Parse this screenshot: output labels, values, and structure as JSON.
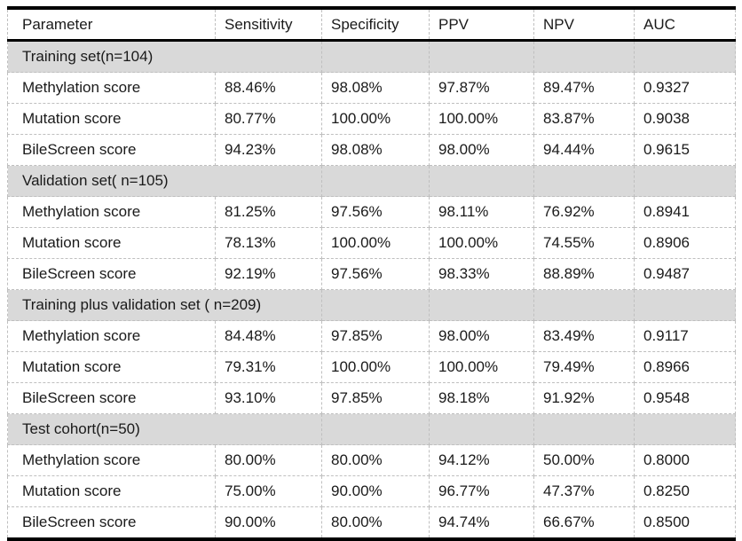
{
  "table": {
    "columns": [
      {
        "key": "parameter",
        "label": "Parameter"
      },
      {
        "key": "sensitivity",
        "label": "Sensitivity"
      },
      {
        "key": "specificity",
        "label": "Specificity"
      },
      {
        "key": "ppv",
        "label": "PPV"
      },
      {
        "key": "npv",
        "label": "NPV"
      },
      {
        "key": "auc",
        "label": "AUC"
      }
    ],
    "sections": [
      {
        "label": "Training set(n=104)",
        "rows": [
          {
            "parameter": "Methylation score",
            "values": [
              "88.46%",
              "98.08%",
              "97.87%",
              "89.47%",
              "0.9327"
            ]
          },
          {
            "parameter": "Mutation score",
            "values": [
              "80.77%",
              "100.00%",
              "100.00%",
              "83.87%",
              "0.9038"
            ]
          },
          {
            "parameter": "BileScreen score",
            "values": [
              "94.23%",
              "98.08%",
              "98.00%",
              "94.44%",
              "0.9615"
            ]
          }
        ]
      },
      {
        "label": "Validation set( n=105)",
        "rows": [
          {
            "parameter": "Methylation score",
            "values": [
              "81.25%",
              "97.56%",
              "98.11%",
              "76.92%",
              "0.8941"
            ]
          },
          {
            "parameter": "Mutation score",
            "values": [
              "78.13%",
              "100.00%",
              "100.00%",
              "74.55%",
              "0.8906"
            ]
          },
          {
            "parameter": "BileScreen score",
            "values": [
              "92.19%",
              "97.56%",
              "98.33%",
              "88.89%",
              "0.9487"
            ]
          }
        ]
      },
      {
        "label": "Training plus validation set ( n=209)",
        "rows": [
          {
            "parameter": "Methylation score",
            "values": [
              "84.48%",
              "97.85%",
              "98.00%",
              "83.49%",
              "0.9117"
            ]
          },
          {
            "parameter": "Mutation score",
            "values": [
              "79.31%",
              "100.00%",
              "100.00%",
              "79.49%",
              "0.8966"
            ]
          },
          {
            "parameter": "BileScreen score",
            "values": [
              "93.10%",
              "97.85%",
              "98.18%",
              "91.92%",
              "0.9548"
            ]
          }
        ]
      },
      {
        "label": "Test cohort(n=50)",
        "rows": [
          {
            "parameter": "Methylation score",
            "values": [
              "80.00%",
              "80.00%",
              "94.12%",
              "50.00%",
              "0.8000"
            ]
          },
          {
            "parameter": "Mutation score",
            "values": [
              "75.00%",
              "90.00%",
              "96.77%",
              "47.37%",
              "0.8250"
            ]
          },
          {
            "parameter": "BileScreen score",
            "values": [
              "90.00%",
              "80.00%",
              "94.74%",
              "66.67%",
              "0.8500"
            ]
          }
        ]
      }
    ],
    "colors": {
      "section_background": "#d9d9d9",
      "grid_line": "#bfbfbf",
      "heavy_rule": "#000000",
      "text": "#1a1a1a"
    }
  }
}
